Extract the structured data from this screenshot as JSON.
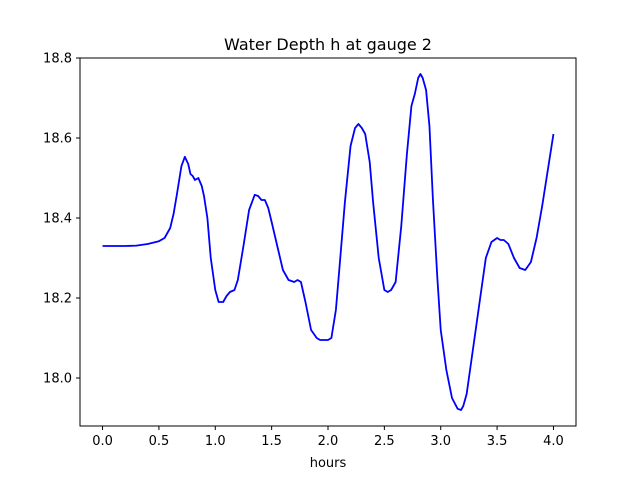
{
  "chart_data": {
    "type": "line",
    "title": "Water Depth h at gauge 2",
    "xlabel": "hours",
    "ylabel": "",
    "xlim": [
      -0.2,
      4.2
    ],
    "ylim": [
      17.88,
      18.8
    ],
    "xticks": [
      0.0,
      0.5,
      1.0,
      1.5,
      2.0,
      2.5,
      3.0,
      3.5,
      4.0
    ],
    "xtick_labels": [
      "0.0",
      "0.5",
      "1.0",
      "1.5",
      "2.0",
      "2.5",
      "3.0",
      "3.5",
      "4.0"
    ],
    "yticks": [
      18.0,
      18.2,
      18.4,
      18.6,
      18.8
    ],
    "ytick_labels": [
      "18.0",
      "18.2",
      "18.4",
      "18.6",
      "18.8"
    ],
    "grid": false,
    "series": [
      {
        "color": "#0000ff",
        "x": [
          0.0,
          0.1,
          0.2,
          0.3,
          0.4,
          0.5,
          0.55,
          0.6,
          0.63,
          0.66,
          0.7,
          0.73,
          0.76,
          0.78,
          0.8,
          0.82,
          0.85,
          0.88,
          0.9,
          0.93,
          0.96,
          1.0,
          1.03,
          1.07,
          1.1,
          1.13,
          1.17,
          1.2,
          1.25,
          1.3,
          1.35,
          1.38,
          1.41,
          1.44,
          1.47,
          1.5,
          1.55,
          1.6,
          1.65,
          1.7,
          1.73,
          1.76,
          1.8,
          1.85,
          1.9,
          1.93,
          1.96,
          2.0,
          2.03,
          2.07,
          2.1,
          2.15,
          2.2,
          2.24,
          2.27,
          2.3,
          2.33,
          2.37,
          2.4,
          2.45,
          2.5,
          2.53,
          2.56,
          2.6,
          2.65,
          2.7,
          2.74,
          2.77,
          2.8,
          2.82,
          2.84,
          2.87,
          2.9,
          2.93,
          2.97,
          3.0,
          3.05,
          3.1,
          3.15,
          3.18,
          3.2,
          3.23,
          3.27,
          3.3,
          3.35,
          3.4,
          3.45,
          3.5,
          3.53,
          3.56,
          3.6,
          3.65,
          3.7,
          3.75,
          3.8,
          3.85,
          3.9,
          3.95,
          4.0
        ],
        "y": [
          18.33,
          18.33,
          18.33,
          18.331,
          18.335,
          18.342,
          18.35,
          18.375,
          18.41,
          18.46,
          18.53,
          18.553,
          18.535,
          18.51,
          18.505,
          18.495,
          18.5,
          18.48,
          18.455,
          18.4,
          18.3,
          18.22,
          18.19,
          18.19,
          18.205,
          18.215,
          18.22,
          18.245,
          18.33,
          18.42,
          18.458,
          18.455,
          18.445,
          18.445,
          18.425,
          18.39,
          18.33,
          18.27,
          18.245,
          18.24,
          18.245,
          18.24,
          18.19,
          18.12,
          18.1,
          18.095,
          18.095,
          18.095,
          18.1,
          18.17,
          18.27,
          18.44,
          18.58,
          18.625,
          18.635,
          18.625,
          18.61,
          18.54,
          18.44,
          18.3,
          18.22,
          18.215,
          18.22,
          18.24,
          18.38,
          18.56,
          18.68,
          18.71,
          18.75,
          18.76,
          18.75,
          18.72,
          18.63,
          18.45,
          18.25,
          18.12,
          18.02,
          17.95,
          17.923,
          17.92,
          17.93,
          17.96,
          18.04,
          18.1,
          18.2,
          18.3,
          18.34,
          18.35,
          18.345,
          18.345,
          18.335,
          18.3,
          18.275,
          18.27,
          18.29,
          18.35,
          18.43,
          18.52,
          18.61
        ]
      }
    ]
  }
}
